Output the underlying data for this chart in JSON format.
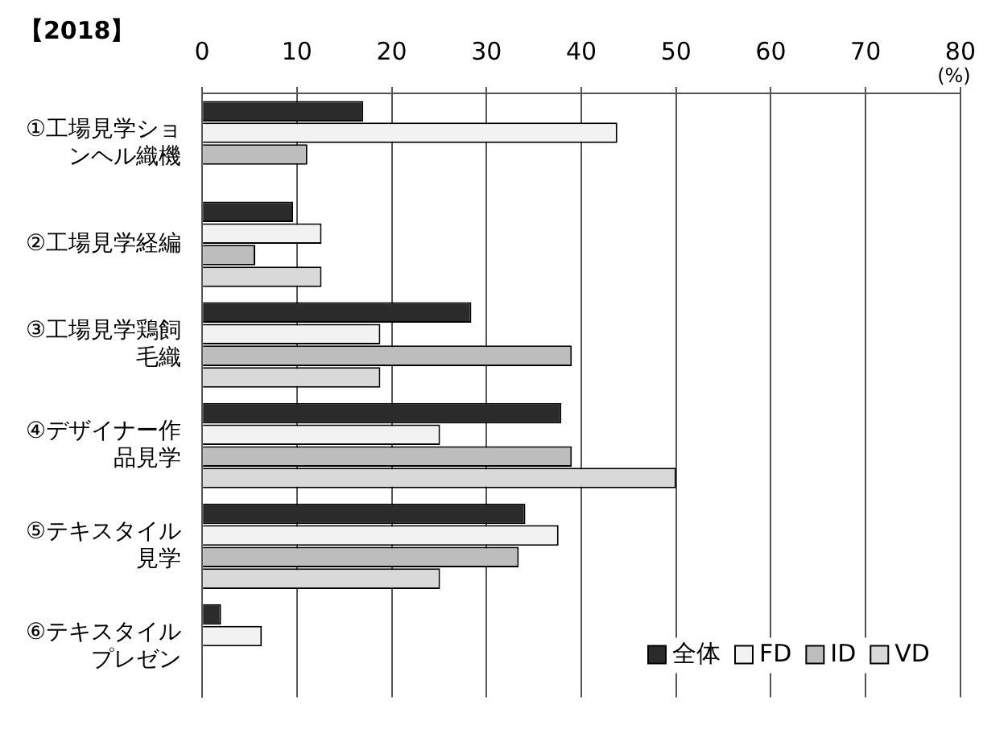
{
  "chart_data": {
    "type": "bar",
    "orientation": "horizontal",
    "title": "【2018】",
    "xlabel": "(%)",
    "categories": [
      "①工場見学ションヘル織機",
      "②工場見学経編",
      "③工場見学鶏飼毛織",
      "④デザイナー作品見学",
      "⑤テキスタイル見学",
      "⑥テキスタイルプレゼン"
    ],
    "series": [
      {
        "name": "全体",
        "color": "#2b2b2b",
        "values": [
          17.0,
          9.6,
          28.4,
          37.9,
          34.1,
          2.0
        ]
      },
      {
        "name": "FD",
        "color": "#f2f2f2",
        "values": [
          43.8,
          12.6,
          18.8,
          25.1,
          37.6,
          6.3
        ]
      },
      {
        "name": "ID",
        "color": "#bdbdbd",
        "values": [
          11.1,
          5.6,
          39.0,
          39.0,
          33.4,
          0
        ]
      },
      {
        "name": "VD",
        "color": "#d9d9d9",
        "values": [
          0,
          12.6,
          18.8,
          50.0,
          25.1,
          0
        ]
      }
    ],
    "xlim": [
      0,
      80
    ],
    "xticks": [
      0,
      10,
      20,
      30,
      40,
      50,
      60,
      70,
      80
    ],
    "grid": "x",
    "legend": "bottom right"
  }
}
